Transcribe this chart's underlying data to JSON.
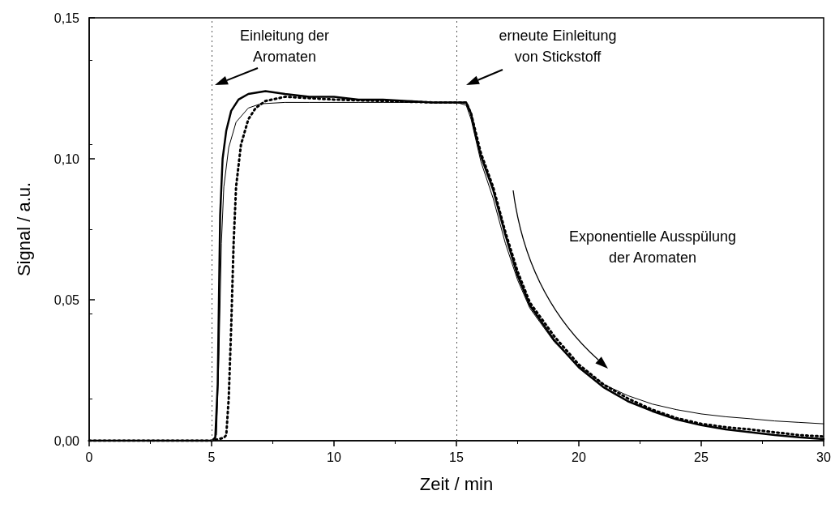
{
  "chart_data": {
    "type": "line",
    "xlabel": "Zeit / min",
    "ylabel": "Signal / a.u.",
    "xlim": [
      0,
      30
    ],
    "ylim": [
      0,
      0.15
    ],
    "xticks": [
      0,
      5,
      10,
      15,
      20,
      25,
      30
    ],
    "yticks": [
      {
        "value": 0,
        "label": "0,00"
      },
      {
        "value": 0.05,
        "label": "0,05"
      },
      {
        "value": 0.1,
        "label": "0,10"
      },
      {
        "value": 0.15,
        "label": "0,15"
      }
    ],
    "grid": false,
    "marker": "none",
    "ref_lines": [
      {
        "axis": "x",
        "value": 5,
        "color": "#555555",
        "line_style": "dotted"
      },
      {
        "axis": "x",
        "value": 15,
        "color": "#555555",
        "line_style": "dotted"
      }
    ],
    "annotations": [
      "Einleitung der\nAromaten",
      "erneute Einleitung\nvon Stickstoff",
      "Exponentielle Ausspülung\nder Aromaten"
    ],
    "series": [
      {
        "color": "#000000",
        "line_style": "solid",
        "x": [
          0,
          1,
          2,
          3,
          4,
          5,
          5.15,
          5.25,
          5.3,
          5.35,
          5.45,
          5.6,
          5.8,
          6.1,
          6.5,
          7.2,
          8,
          9,
          10,
          11,
          12,
          13,
          14,
          15,
          15.4,
          15.6,
          15.8,
          16,
          16.5,
          17,
          17.5,
          18,
          19,
          20,
          21,
          22,
          23,
          24,
          25,
          26,
          27,
          28,
          29,
          30
        ],
        "values": [
          0,
          0,
          0,
          0,
          0,
          0,
          0.001,
          0.02,
          0.05,
          0.08,
          0.1,
          0.11,
          0.117,
          0.121,
          0.123,
          0.124,
          0.123,
          0.122,
          0.122,
          0.121,
          0.121,
          0.1205,
          0.12,
          0.12,
          0.12,
          0.116,
          0.108,
          0.101,
          0.089,
          0.073,
          0.0586,
          0.048,
          0.0356,
          0.026,
          0.019,
          0.014,
          0.0105,
          0.0075,
          0.0055,
          0.004,
          0.003,
          0.002,
          0.0012,
          0.0006
        ]
      },
      {
        "color": "#000000",
        "line_style": "solid",
        "x": [
          0,
          1,
          2,
          3,
          4,
          5,
          5.2,
          5.3,
          5.4,
          5.5,
          5.7,
          6,
          6.5,
          7,
          8,
          9,
          10,
          11,
          12,
          13,
          14,
          15,
          15.4,
          15.6,
          16,
          16.5,
          17,
          17.5,
          18,
          19,
          20,
          21,
          22,
          23,
          24,
          25,
          26,
          27,
          28,
          29,
          30
        ],
        "values": [
          0,
          0,
          0,
          0,
          0,
          0,
          0.002,
          0.03,
          0.07,
          0.09,
          0.104,
          0.113,
          0.118,
          0.1195,
          0.12,
          0.12,
          0.12,
          0.12,
          0.12,
          0.12,
          0.12,
          0.12,
          0.119,
          0.114,
          0.099,
          0.086,
          0.07,
          0.057,
          0.047,
          0.035,
          0.0265,
          0.02,
          0.016,
          0.013,
          0.011,
          0.0095,
          0.0085,
          0.0078,
          0.007,
          0.0065,
          0.006
        ]
      },
      {
        "color": "#000000",
        "line_style": "dotted",
        "x": [
          0,
          1,
          2,
          3,
          4,
          5,
          5.5,
          5.6,
          5.7,
          5.8,
          5.9,
          6,
          6.2,
          6.5,
          6.8,
          7.2,
          8,
          9,
          10,
          12,
          14,
          15,
          15.4,
          15.6,
          15.8,
          16,
          16.5,
          17,
          17.5,
          18,
          19,
          20,
          21,
          22,
          23,
          24,
          25,
          26,
          27,
          28,
          29,
          30
        ],
        "values": [
          0,
          0,
          0,
          0,
          0,
          0,
          0.001,
          0.002,
          0.015,
          0.04,
          0.07,
          0.09,
          0.105,
          0.114,
          0.118,
          0.1205,
          0.122,
          0.1215,
          0.121,
          0.1205,
          0.12,
          0.12,
          0.12,
          0.116,
          0.109,
          0.102,
          0.09,
          0.074,
          0.06,
          0.049,
          0.037,
          0.027,
          0.02,
          0.015,
          0.011,
          0.008,
          0.006,
          0.0048,
          0.004,
          0.003,
          0.002,
          0.0015
        ]
      }
    ]
  }
}
